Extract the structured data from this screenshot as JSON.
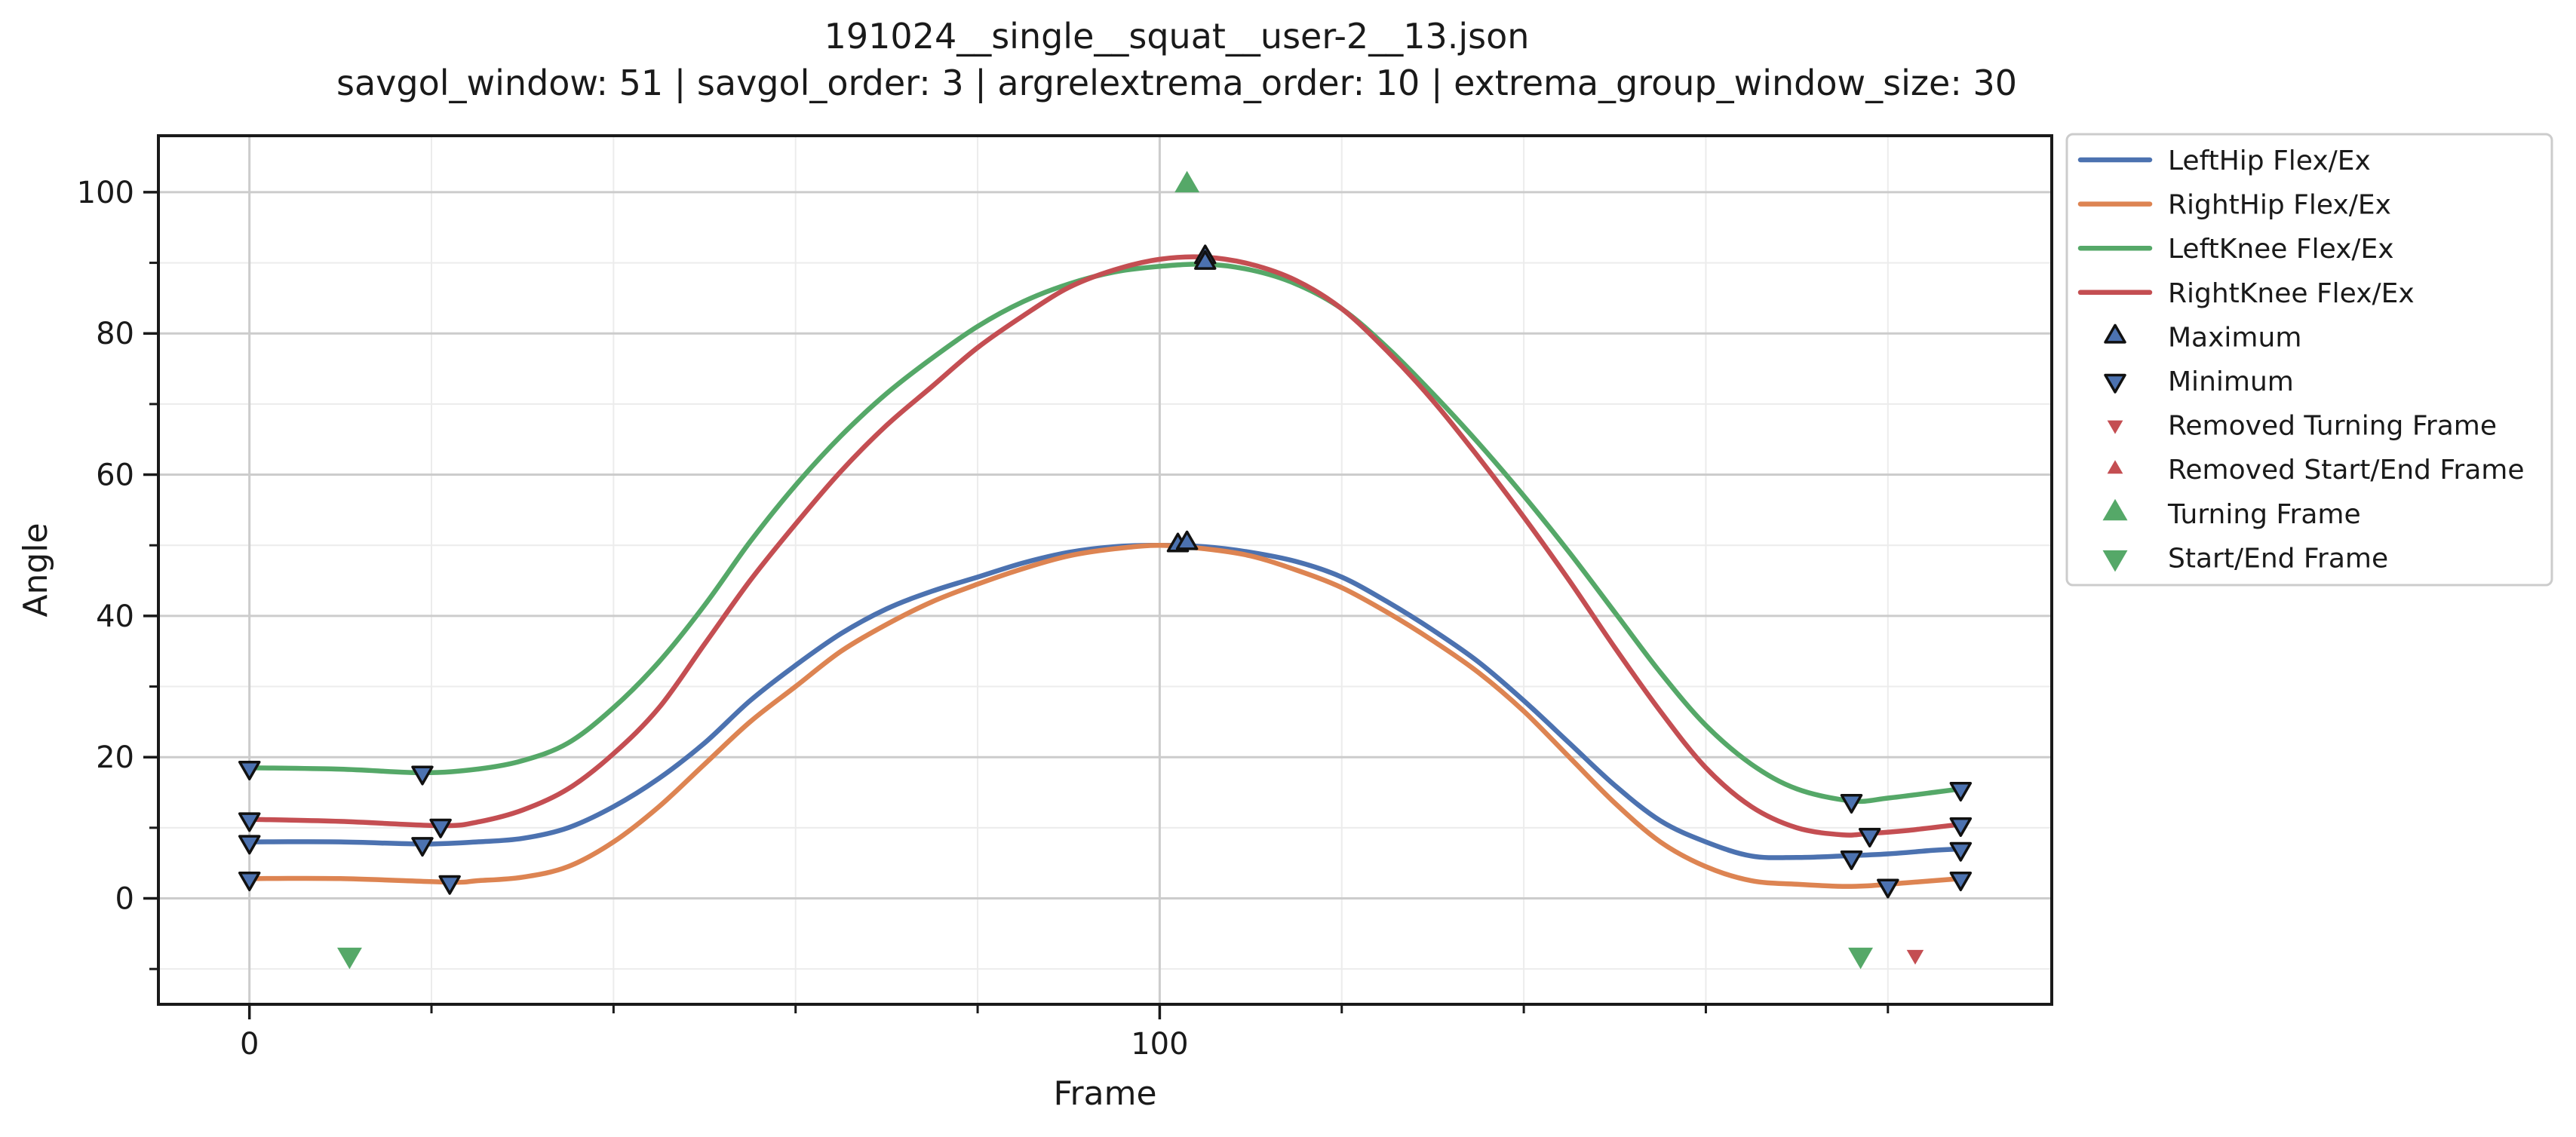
{
  "chart_data": {
    "type": "line",
    "title": "191024__single__squat__user-2__13.json",
    "subtitle": "savgol_window: 51  |  savgol_order: 3  |  argrelextrema_order: 10  |  extrema_group_window_size: 30",
    "xlabel": "Frame",
    "ylabel": "Angle",
    "xlim": [
      -10,
      198
    ],
    "ylim": [
      -15,
      108
    ],
    "x_major_ticks": [
      0,
      100
    ],
    "x_minor_ticks": [
      20,
      40,
      60,
      80,
      120,
      140,
      160,
      180
    ],
    "y_major_ticks": [
      0,
      20,
      40,
      60,
      80,
      100
    ],
    "y_minor_ticks": [
      -10,
      10,
      30,
      50,
      70,
      90
    ],
    "x_tick_labels": [
      "0",
      "100"
    ],
    "y_tick_labels": [
      "0",
      "20",
      "40",
      "60",
      "80",
      "100"
    ],
    "grid": true,
    "legend_position": "outside-right-top",
    "series": [
      {
        "name": "LeftHip Flex/Ex",
        "color": "#4c72b0",
        "x": [
          0,
          10,
          19,
          25,
          30,
          35,
          40,
          45,
          50,
          55,
          60,
          65,
          70,
          75,
          80,
          85,
          90,
          95,
          100,
          105,
          110,
          115,
          120,
          125,
          130,
          135,
          140,
          145,
          150,
          155,
          160,
          165,
          170,
          175,
          180,
          185,
          188
        ],
        "y": [
          8,
          8,
          7.7,
          8,
          8.5,
          10,
          13,
          17,
          22,
          28,
          33,
          37.5,
          41,
          43.5,
          45.5,
          47.5,
          49,
          49.8,
          50,
          49.8,
          49,
          47.7,
          45.5,
          42,
          38,
          33.5,
          28,
          22,
          16,
          11,
          8,
          6,
          5.8,
          6,
          6.3,
          6.8,
          7
        ]
      },
      {
        "name": "RightHip Flex/Ex",
        "color": "#dd8452",
        "x": [
          0,
          10,
          22,
          25,
          30,
          35,
          40,
          45,
          50,
          55,
          60,
          65,
          70,
          75,
          80,
          85,
          90,
          95,
          100,
          105,
          110,
          115,
          120,
          125,
          130,
          135,
          140,
          145,
          150,
          155,
          160,
          165,
          170,
          175,
          178,
          182,
          188
        ],
        "y": [
          2.8,
          2.8,
          2.3,
          2.5,
          3,
          4.5,
          8,
          13,
          19,
          25,
          30,
          35,
          38.8,
          42,
          44.5,
          46.7,
          48.5,
          49.5,
          50,
          49.5,
          48.5,
          46.5,
          44,
          40.5,
          36.5,
          32,
          26.5,
          20,
          13.5,
          8,
          4.5,
          2.5,
          2,
          1.7,
          1.8,
          2.2,
          2.8
        ]
      },
      {
        "name": "LeftKnee Flex/Ex",
        "color": "#55a868",
        "x": [
          0,
          10,
          19,
          25,
          30,
          35,
          40,
          45,
          50,
          55,
          60,
          65,
          70,
          75,
          80,
          85,
          90,
          95,
          100,
          105,
          110,
          115,
          120,
          125,
          130,
          135,
          140,
          145,
          150,
          155,
          160,
          165,
          170,
          176,
          180,
          185,
          188
        ],
        "y": [
          18.5,
          18.3,
          17.8,
          18.3,
          19.5,
          22,
          27,
          33.5,
          41.5,
          50.5,
          58.5,
          65.5,
          71.5,
          76.5,
          81,
          84.5,
          87,
          88.7,
          89.5,
          89.8,
          89,
          87,
          83.5,
          78,
          71.5,
          64.5,
          57,
          49,
          40.5,
          32,
          24.5,
          19,
          15.5,
          13.8,
          14.2,
          15,
          15.5
        ]
      },
      {
        "name": "RightKnee Flex/Ex",
        "color": "#c44e52",
        "x": [
          0,
          10,
          21,
          25,
          30,
          35,
          40,
          45,
          50,
          55,
          60,
          65,
          70,
          75,
          80,
          85,
          90,
          95,
          100,
          105,
          110,
          115,
          120,
          125,
          130,
          135,
          140,
          145,
          150,
          155,
          160,
          165,
          170,
          175,
          178,
          182,
          188
        ],
        "y": [
          11.2,
          10.9,
          10.3,
          10.8,
          12.5,
          15.5,
          20.5,
          27,
          36,
          45,
          53,
          60.5,
          67,
          72.5,
          78,
          82.5,
          86.5,
          89,
          90.5,
          90.8,
          89.8,
          87.5,
          83.5,
          77.5,
          70.5,
          62.5,
          54,
          45,
          35.5,
          26.5,
          18.5,
          13,
          10,
          9,
          9.2,
          9.6,
          10.5
        ]
      }
    ],
    "markers": {
      "maximum": {
        "name": "Maximum",
        "x": [
          102,
          103,
          105,
          105
        ],
        "y": [
          50,
          50.3,
          90.8,
          90
        ]
      },
      "minimum": {
        "name": "Minimum",
        "x": [
          0,
          0,
          0,
          0,
          19,
          19,
          21,
          22,
          176,
          176,
          178,
          180,
          188,
          188,
          188,
          188
        ],
        "y": [
          18.5,
          11.2,
          8,
          2.8,
          17.8,
          7.7,
          10.3,
          2.3,
          13.8,
          5.8,
          9,
          1.8,
          15.5,
          10.5,
          7,
          2.8
        ]
      },
      "removed_turning": {
        "name": "Removed Turning Frame",
        "color": "#c44e52",
        "x": [
          183
        ],
        "y": [
          -8
        ]
      },
      "removed_start_end": {
        "name": "Removed Start/End Frame",
        "color": "#c44e52",
        "x": [],
        "y": []
      },
      "turning": {
        "name": "Turning Frame",
        "color": "#55a868",
        "x": [
          103
        ],
        "y": [
          101
        ]
      },
      "start_end": {
        "name": "Start/End Frame",
        "color": "#55a868",
        "x": [
          11,
          177
        ],
        "y": [
          -8,
          -8
        ]
      }
    },
    "legend": [
      {
        "label": "LeftHip Flex/Ex",
        "kind": "line",
        "color": "#4c72b0"
      },
      {
        "label": "RightHip Flex/Ex",
        "kind": "line",
        "color": "#dd8452"
      },
      {
        "label": "LeftKnee Flex/Ex",
        "kind": "line",
        "color": "#55a868"
      },
      {
        "label": "RightKnee Flex/Ex",
        "kind": "line",
        "color": "#c44e52"
      },
      {
        "label": "Maximum",
        "kind": "max",
        "color": "#4c72b0"
      },
      {
        "label": "Minimum",
        "kind": "min",
        "color": "#4c72b0"
      },
      {
        "label": "Removed Turning Frame",
        "kind": "small-down",
        "color": "#c44e52"
      },
      {
        "label": "Removed Start/End Frame",
        "kind": "small-up",
        "color": "#c44e52"
      },
      {
        "label": "Turning Frame",
        "kind": "big-up",
        "color": "#55a868"
      },
      {
        "label": "Start/End Frame",
        "kind": "big-down",
        "color": "#55a868"
      }
    ]
  }
}
